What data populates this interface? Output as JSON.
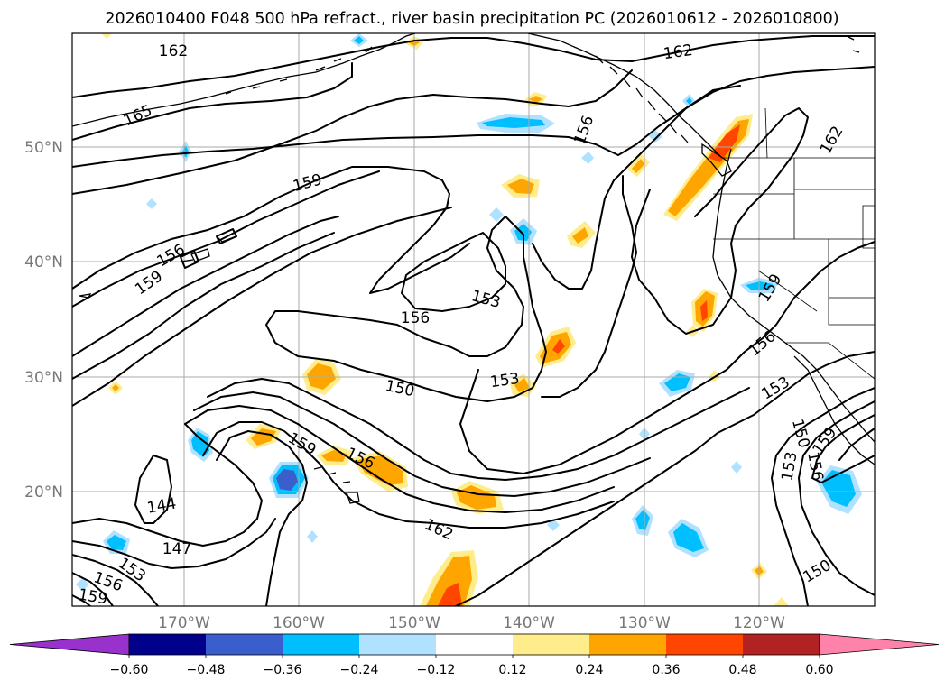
{
  "title": "2026010400 F048 500 hPa refract., river basin precipitation PC (2026010612 - 2026010800)",
  "lat_labels": [
    "50°N",
    "40°N",
    "30°N",
    "20°N"
  ],
  "lon_labels": [
    "170°W",
    "160°W",
    "150°W",
    "140°W",
    "130°W",
    "120°W"
  ],
  "contour_labels": [
    {
      "text": "162",
      "id": "c162a"
    },
    {
      "text": "162",
      "id": "c162b"
    },
    {
      "text": "165",
      "id": "c165"
    },
    {
      "text": "156",
      "id": "c156a"
    },
    {
      "text": "162",
      "id": "c162c"
    },
    {
      "text": "159",
      "id": "c159a"
    },
    {
      "text": "156",
      "id": "c156b"
    },
    {
      "text": "159",
      "id": "c159b"
    },
    {
      "text": "153",
      "id": "c153a"
    },
    {
      "text": "156",
      "id": "c156c"
    },
    {
      "text": "159",
      "id": "c159c"
    },
    {
      "text": "156",
      "id": "c156d"
    },
    {
      "text": "153",
      "id": "c153b"
    },
    {
      "text": "150",
      "id": "c150a"
    },
    {
      "text": "153",
      "id": "c153c"
    },
    {
      "text": "159",
      "id": "c159d"
    },
    {
      "text": "156",
      "id": "c156e"
    },
    {
      "text": "162",
      "id": "c162d"
    },
    {
      "text": "144",
      "id": "c144"
    },
    {
      "text": "147",
      "id": "c147"
    },
    {
      "text": "153",
      "id": "c153d"
    },
    {
      "text": "156",
      "id": "c156f"
    },
    {
      "text": "159",
      "id": "c159e"
    },
    {
      "text": "150",
      "id": "c150b"
    },
    {
      "text": "153",
      "id": "c153e"
    },
    {
      "text": "156",
      "id": "c156g"
    },
    {
      "text": "159",
      "id": "c159f"
    },
    {
      "text": "150",
      "id": "c150c"
    }
  ],
  "colorbar": {
    "ticks": [
      "−0.60",
      "−0.48",
      "−0.36",
      "−0.24",
      "−0.12",
      "0.12",
      "0.24",
      "0.36",
      "0.48",
      "0.60"
    ],
    "colors": [
      "#9932cc",
      "#00008b",
      "#3a5fcd",
      "#00bfff",
      "#b0e2ff",
      "#ffffff",
      "#ffec8b",
      "#ffa500",
      "#ff4500",
      "#b22222",
      "#ff82ab"
    ]
  },
  "colors": {
    "yellow": "#ffec8b",
    "orange": "#ffa500",
    "red": "#ff4500",
    "lightblue": "#b0e2ff",
    "blue": "#00bfff",
    "medblue": "#3a5fcd"
  }
}
